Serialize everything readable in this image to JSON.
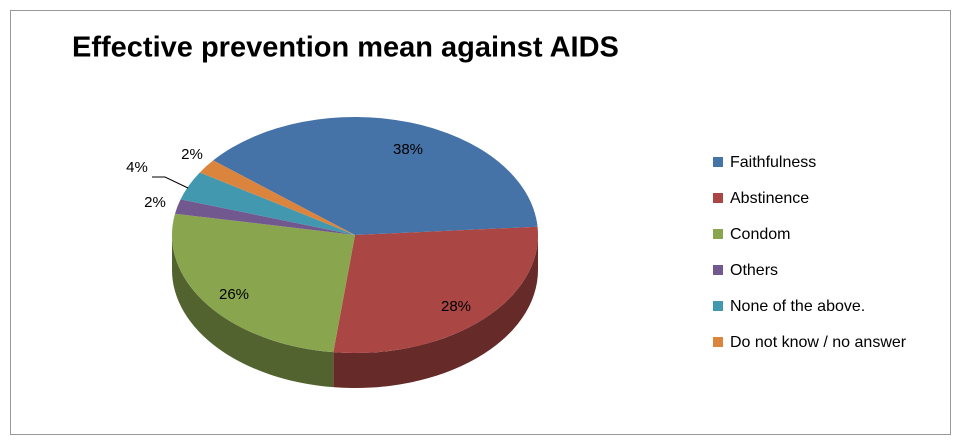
{
  "chart_data": {
    "type": "pie3d",
    "title": "Effective prevention mean against AIDS",
    "categories": [
      "Faithfulness",
      "Abstinence",
      "Condom",
      "Others",
      "None of the above.",
      "Do not know / no answer"
    ],
    "values": [
      38,
      28,
      26,
      2,
      4,
      2
    ],
    "value_labels": [
      "38%",
      "28%",
      "26%",
      "2%",
      "4%",
      "2%"
    ],
    "colors": [
      "#4572a7",
      "#aa4643",
      "#89a54e",
      "#71588f",
      "#4198af",
      "#db843d"
    ],
    "legend": "right"
  }
}
